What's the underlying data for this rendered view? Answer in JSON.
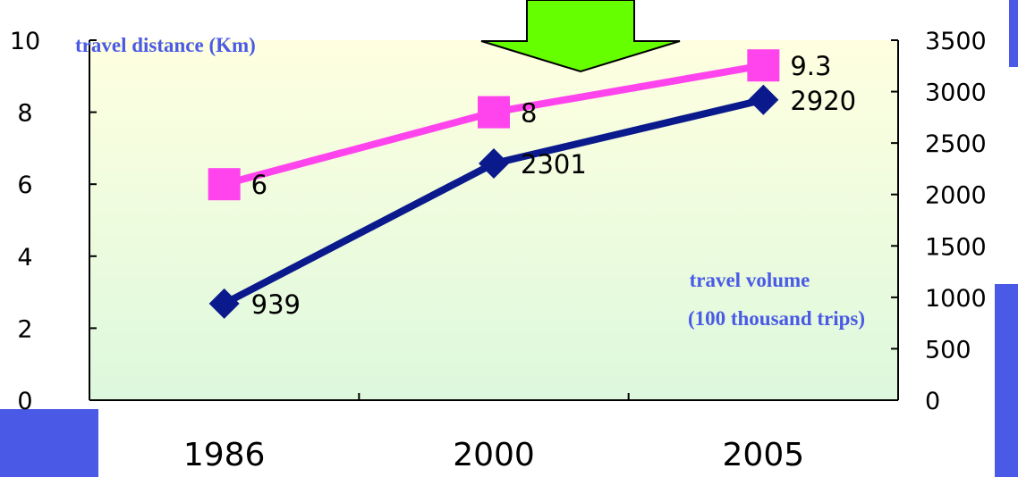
{
  "chart_data": {
    "type": "line",
    "categories": [
      "1986",
      "2000",
      "2005"
    ],
    "series": [
      {
        "name": "travel distance (Km)",
        "axis": "left",
        "values": [
          6,
          8,
          9.3
        ],
        "labels": [
          "6",
          "8",
          "9.3"
        ],
        "color": "#ff44ee",
        "marker": "square"
      },
      {
        "name": "travel volume (100 thousand trips)",
        "axis": "right",
        "values": [
          939,
          2301,
          2920
        ],
        "labels": [
          "939",
          "2301",
          "2920"
        ],
        "color": "#0a1a8c",
        "marker": "diamond"
      }
    ],
    "y_left": {
      "label": "travel distance (Km)",
      "ylim": [
        0,
        10
      ],
      "ticks": [
        "0",
        "2",
        "4",
        "6",
        "8",
        "10"
      ]
    },
    "y_right": {
      "label_line1": "travel volume",
      "label_line2": "(100 thousand trips)",
      "ylim": [
        0,
        3500
      ],
      "ticks": [
        "0",
        "500",
        "1000",
        "1500",
        "2000",
        "2500",
        "3000",
        "3500"
      ]
    },
    "grid": false,
    "colors": {
      "plot_bg_top": "#ffffe0",
      "plot_bg_bottom": "#ddf8dd",
      "arrow": "#66ff00",
      "accent_bar": "#4a5ae6"
    }
  }
}
